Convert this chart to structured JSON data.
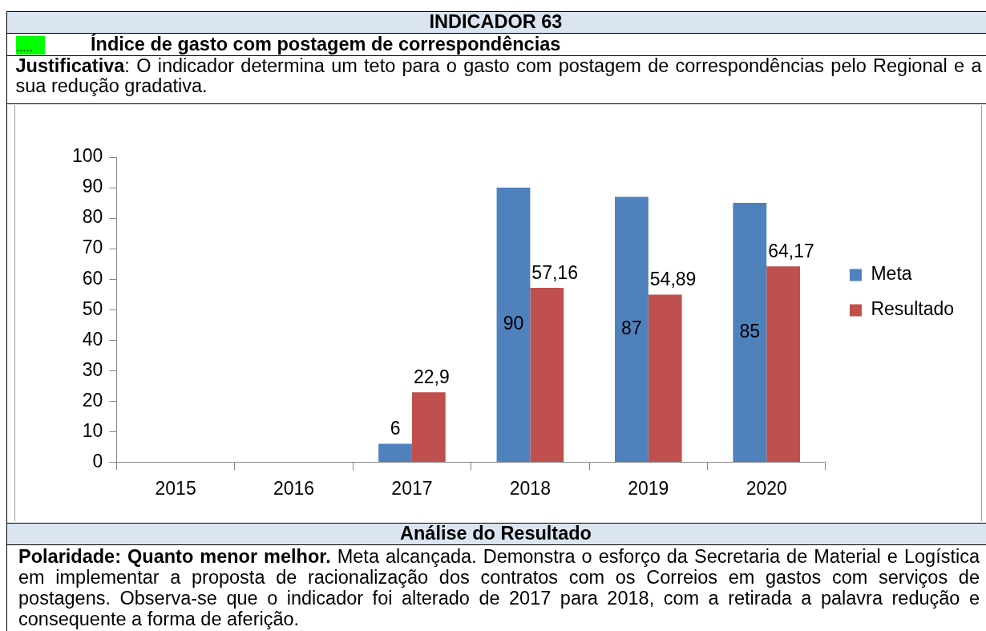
{
  "chart_data": {
    "type": "bar",
    "title": "INDICADOR 63",
    "subtitle": "Índice de gasto com postagem de correspondências",
    "categories": [
      "2015",
      "2016",
      "2017",
      "2018",
      "2019",
      "2020"
    ],
    "series": [
      {
        "name": "Meta",
        "color": "#4f81bd",
        "values": [
          null,
          null,
          6,
          90,
          87,
          85
        ],
        "value_labels": [
          null,
          null,
          "6",
          "90",
          "87",
          "85"
        ]
      },
      {
        "name": "Resultado",
        "color": "#c0504d",
        "values": [
          null,
          null,
          22.9,
          57.16,
          54.89,
          64.17
        ],
        "value_labels": [
          null,
          null,
          "22,9",
          "57,16",
          "54,89",
          "64,17"
        ]
      }
    ],
    "ylim": [
      0,
      100
    ],
    "yticks": [
      0,
      10,
      20,
      30,
      40,
      50,
      60,
      70,
      80,
      90,
      100
    ],
    "grid": false,
    "legend": "right",
    "annotations": [
      ".....",
      "Justificativa",
      ": O indicador determina um teto para o gasto com postagem de correspondências pelo Regional e a sua redução gradativa.",
      "Análise do Resultado",
      "Polaridade: Quanto menor melhor.",
      "Meta alcançada. Demonstra o esforço da Secretaria de Material e Logística em implementar a proposta de racionalização dos contratos com os Correios em gastos com serviços de postagens. Observa-se que o indicador foi alterado de 2017 para 2018, com a retirada a palavra redução e consequente a forma de aferição."
    ]
  }
}
